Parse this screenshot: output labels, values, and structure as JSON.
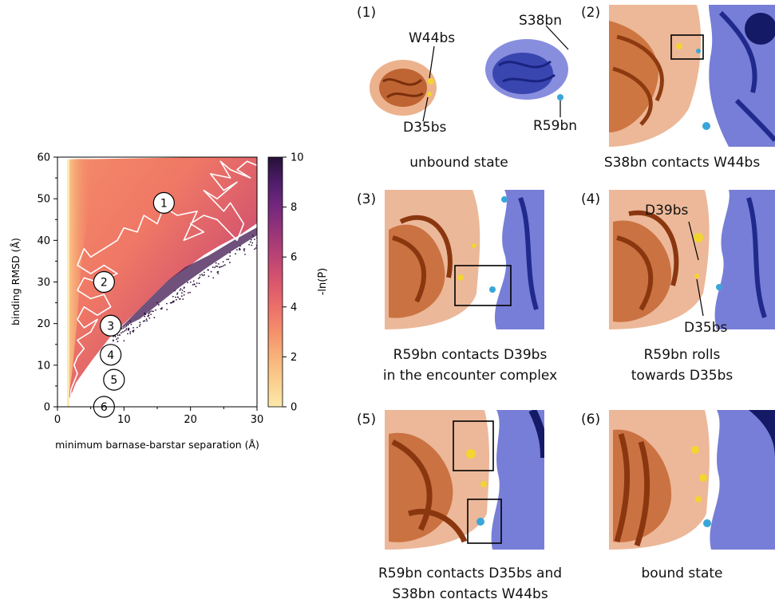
{
  "chart_data": {
    "type": "heatmap",
    "xlabel": "minimum barnase-barstar separation (Å)",
    "ylabel": "binding RMSD (Å)",
    "xlim": [
      0,
      30
    ],
    "ylim": [
      0,
      60
    ],
    "xticks": [
      "0",
      "10",
      "20",
      "30"
    ],
    "yticks": [
      "0",
      "10",
      "20",
      "30",
      "40",
      "50",
      "60"
    ],
    "colorbar": {
      "label": "-ln(P)",
      "range": [
        0,
        10
      ],
      "ticks": [
        "0",
        "2",
        "4",
        "6",
        "8",
        "10"
      ],
      "colors": [
        "#fce9a8",
        "#fbcf8f",
        "#f8b27b",
        "#f4906b",
        "#ec6f69",
        "#d9566d",
        "#bb4374",
        "#983579",
        "#74287d",
        "#4f1d6a",
        "#261138"
      ]
    },
    "markers": [
      {
        "label": "1",
        "x": 16,
        "y": 49
      },
      {
        "label": "2",
        "x": 7,
        "y": 30
      },
      {
        "label": "3",
        "x": 8,
        "y": 19.5
      },
      {
        "label": "4",
        "x": 8,
        "y": 12.5
      },
      {
        "label": "5",
        "x": 8.5,
        "y": 6.5
      },
      {
        "label": "6",
        "x": 7,
        "y": 0
      }
    ],
    "trajectory": [
      [
        30,
        58
      ],
      [
        28.5,
        59
      ],
      [
        27,
        57
      ],
      [
        29,
        55
      ],
      [
        26,
        57
      ],
      [
        24.5,
        59
      ],
      [
        26,
        55
      ],
      [
        23,
        56
      ],
      [
        25,
        52
      ],
      [
        27,
        54
      ],
      [
        24,
        50
      ],
      [
        22,
        52
      ],
      [
        25,
        47
      ],
      [
        26,
        49
      ],
      [
        28,
        44
      ],
      [
        27,
        40
      ],
      [
        24,
        45
      ],
      [
        22,
        46
      ],
      [
        20,
        44
      ],
      [
        22,
        42
      ],
      [
        19,
        40
      ],
      [
        21,
        47
      ],
      [
        18,
        46
      ],
      [
        16,
        48
      ],
      [
        15,
        44
      ],
      [
        13,
        46
      ],
      [
        12,
        42
      ],
      [
        10,
        43
      ],
      [
        9,
        40
      ],
      [
        7,
        38
      ],
      [
        5,
        36
      ],
      [
        4,
        38
      ],
      [
        3,
        34
      ],
      [
        5,
        32
      ],
      [
        7,
        34
      ],
      [
        9,
        32
      ],
      [
        6,
        30
      ],
      [
        4,
        31
      ],
      [
        3,
        28
      ],
      [
        5,
        26
      ],
      [
        7,
        27
      ],
      [
        8,
        24
      ],
      [
        6,
        22
      ],
      [
        4,
        24
      ],
      [
        3,
        21
      ],
      [
        4,
        19
      ],
      [
        6,
        21
      ],
      [
        5,
        18
      ],
      [
        3,
        16
      ],
      [
        4,
        14
      ],
      [
        3,
        12
      ],
      [
        2.5,
        10
      ],
      [
        3,
        8
      ],
      [
        2.5,
        6
      ],
      [
        2,
        4
      ],
      [
        2,
        2.5
      ],
      [
        1.8,
        1.5
      ]
    ]
  },
  "panels": [
    {
      "num": "(1)",
      "caption": [
        "unbound state"
      ],
      "callouts": [
        "W44bs",
        "D35bs",
        "S38bn",
        "R59bn"
      ]
    },
    {
      "num": "(2)",
      "caption": [
        "S38bn contacts W44bs"
      ],
      "callouts": []
    },
    {
      "num": "(3)",
      "caption": [
        "R59bn contacts D39bs",
        "in the encounter complex"
      ],
      "callouts": []
    },
    {
      "num": "(4)",
      "caption": [
        "R59bn rolls",
        "towards D35bs"
      ],
      "callouts": [
        "D39bs",
        "D35bs"
      ]
    },
    {
      "num": "(5)",
      "caption": [
        "R59bn contacts D35bs and",
        "S38bn contacts W44bs"
      ],
      "callouts": []
    },
    {
      "num": "(6)",
      "caption": [
        "bound state"
      ],
      "callouts": []
    }
  ]
}
